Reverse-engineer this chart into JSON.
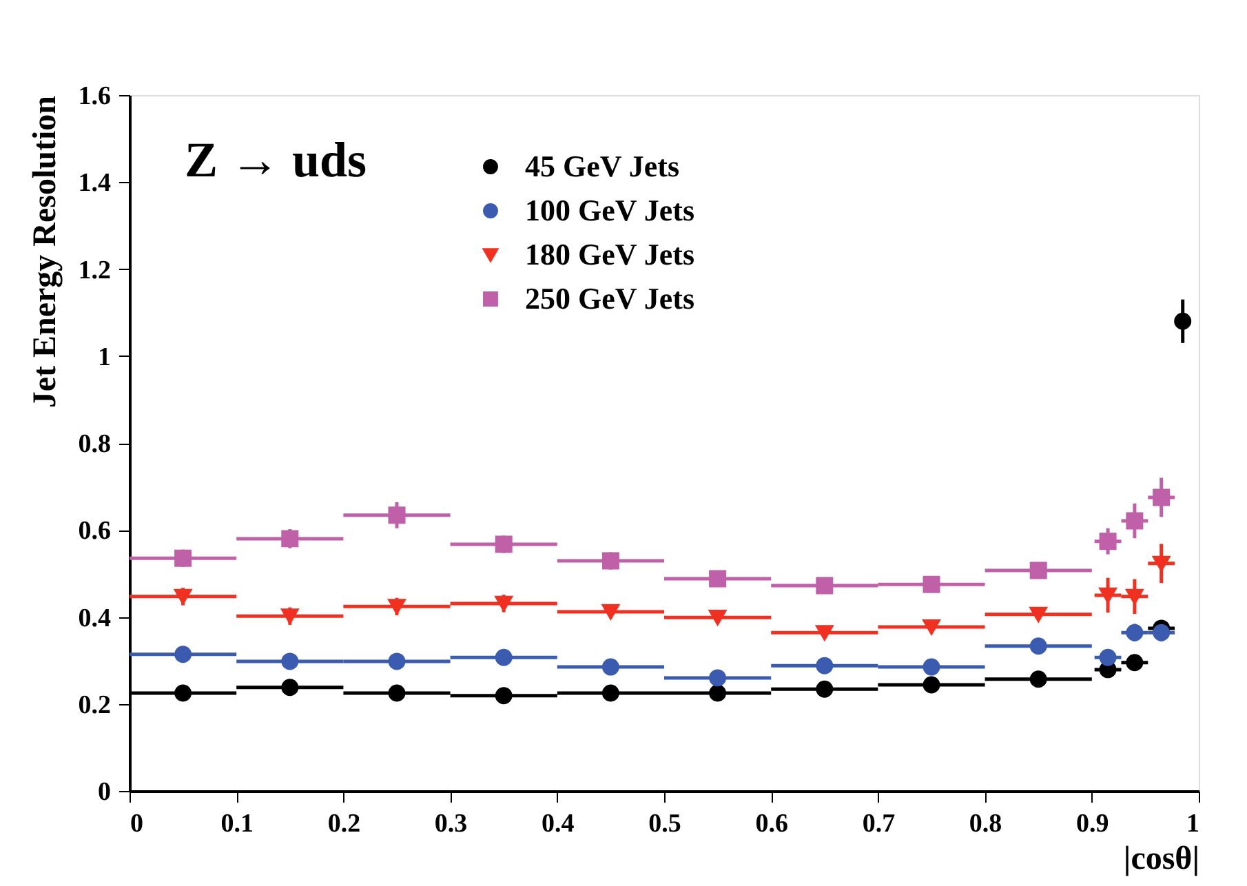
{
  "chart_data": {
    "type": "scatter",
    "annotations": [
      "Z → uds"
    ],
    "xlabel": "|cosθ|",
    "ylabel": "Jet Energy Resolution",
    "series": [
      {
        "name": "45 GeV Jets",
        "color": "#000000",
        "marker": "circle",
        "x": [
          0.05,
          0.15,
          0.25,
          0.35,
          0.45,
          0.55,
          0.65,
          0.75,
          0.85,
          0.915,
          0.94,
          0.965,
          0.985
        ],
        "xerrors": [
          0.05,
          0.05,
          0.05,
          0.05,
          0.05,
          0.05,
          0.05,
          0.05,
          0.05,
          0.0125,
          0.0125,
          0.0125,
          0.006
        ],
        "values": [
          0.225,
          0.238,
          0.225,
          0.219,
          0.225,
          0.225,
          0.234,
          0.244,
          0.257,
          0.279,
          0.295,
          0.374,
          1.08
        ],
        "errors": [
          0.005,
          0.005,
          0.005,
          0.005,
          0.005,
          0.005,
          0.005,
          0.005,
          0.005,
          0.008,
          0.008,
          0.012,
          0.05
        ]
      },
      {
        "name": "100 GeV Jets",
        "color": "#3a5bb0",
        "marker": "circle",
        "x": [
          0.05,
          0.15,
          0.25,
          0.35,
          0.45,
          0.55,
          0.65,
          0.75,
          0.85,
          0.915,
          0.94,
          0.965
        ],
        "xerrors": [
          0.05,
          0.05,
          0.05,
          0.05,
          0.05,
          0.05,
          0.05,
          0.05,
          0.05,
          0.0125,
          0.0125,
          0.0125
        ],
        "values": [
          0.314,
          0.298,
          0.298,
          0.307,
          0.285,
          0.26,
          0.288,
          0.285,
          0.333,
          0.307,
          0.364,
          0.364
        ],
        "errors": [
          0.007,
          0.008,
          0.008,
          0.008,
          0.008,
          0.008,
          0.008,
          0.008,
          0.008,
          0.015,
          0.02,
          0.02
        ]
      },
      {
        "name": "180 GeV Jets",
        "color": "#f03020",
        "marker": "triangle",
        "x": [
          0.05,
          0.15,
          0.25,
          0.35,
          0.45,
          0.55,
          0.65,
          0.75,
          0.85,
          0.915,
          0.94,
          0.965
        ],
        "xerrors": [
          0.05,
          0.05,
          0.05,
          0.05,
          0.05,
          0.05,
          0.05,
          0.05,
          0.05,
          0.0125,
          0.0125,
          0.0125
        ],
        "values": [
          0.447,
          0.402,
          0.424,
          0.431,
          0.412,
          0.399,
          0.364,
          0.377,
          0.406,
          0.45,
          0.447,
          0.523
        ],
        "errors": [
          0.02,
          0.02,
          0.02,
          0.02,
          0.015,
          0.01,
          0.01,
          0.01,
          0.01,
          0.04,
          0.04,
          0.045
        ]
      },
      {
        "name": "250 GeV Jets",
        "color": "#c060a8",
        "marker": "square",
        "x": [
          0.05,
          0.15,
          0.25,
          0.35,
          0.45,
          0.55,
          0.65,
          0.75,
          0.85,
          0.915,
          0.94,
          0.965
        ],
        "xerrors": [
          0.05,
          0.05,
          0.05,
          0.05,
          0.05,
          0.05,
          0.05,
          0.05,
          0.05,
          0.0125,
          0.0125,
          0.0125
        ],
        "values": [
          0.535,
          0.58,
          0.634,
          0.567,
          0.529,
          0.488,
          0.472,
          0.475,
          0.507,
          0.574,
          0.621,
          0.675
        ],
        "errors": [
          0.02,
          0.022,
          0.03,
          0.02,
          0.02,
          0.01,
          0.01,
          0.01,
          0.01,
          0.03,
          0.04,
          0.045
        ]
      }
    ],
    "xlim": [
      0,
      1
    ],
    "xticks": [
      0,
      0.1,
      0.2,
      0.3,
      0.4,
      0.5,
      0.6,
      0.7,
      0.8,
      0.9,
      1
    ],
    "ylim": [
      0,
      1.6
    ],
    "yticks": [
      0,
      0.2,
      0.4,
      0.6,
      0.8,
      1,
      1.2,
      1.4,
      1.6
    ],
    "legend": "top",
    "grid": false
  }
}
